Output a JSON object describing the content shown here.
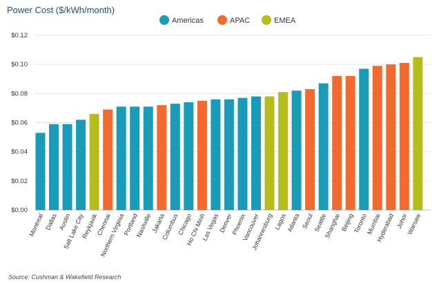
{
  "chart_data": {
    "type": "bar",
    "title": "Power Cost ($/kWh/month)",
    "source": "Source: Cushman & Wakefield Research",
    "ylim": [
      0,
      0.12
    ],
    "yticks": [
      "$0.00",
      "$0.02",
      "$0.04",
      "$0.06",
      "$0.08",
      "$0.10",
      "$0.12"
    ],
    "grid": true,
    "legend_position": "top-center",
    "colors": {
      "Americas": "#1a9bb8",
      "APAC": "#f26a2e",
      "EMEA": "#b5bd1a"
    },
    "series": [
      {
        "name": "Americas"
      },
      {
        "name": "APAC"
      },
      {
        "name": "EMEA"
      }
    ],
    "categories": [
      "Montreal",
      "Dallas",
      "Austin",
      "Salt Lake City",
      "Reykjavik",
      "Chennai",
      "Northern Virginia",
      "Portland",
      "Nashville",
      "Jakarta",
      "Columbus",
      "Chicago",
      "Ho Chi Minh",
      "Las Vegas",
      "Denver",
      "Phoenix",
      "Vancouver",
      "Johannesburg",
      "Lagos",
      "Atlanta",
      "Seoul",
      "Seattle",
      "Shanghai",
      "Beijing",
      "Toronto",
      "Mumbai",
      "Hyderabad",
      "Johor",
      "Warsaw"
    ],
    "regions": [
      "Americas",
      "Americas",
      "Americas",
      "Americas",
      "EMEA",
      "APAC",
      "Americas",
      "Americas",
      "Americas",
      "APAC",
      "Americas",
      "Americas",
      "APAC",
      "Americas",
      "Americas",
      "Americas",
      "Americas",
      "EMEA",
      "EMEA",
      "Americas",
      "APAC",
      "Americas",
      "APAC",
      "APAC",
      "Americas",
      "APAC",
      "APAC",
      "APAC",
      "EMEA"
    ],
    "values": [
      0.053,
      0.059,
      0.059,
      0.062,
      0.066,
      0.069,
      0.071,
      0.071,
      0.071,
      0.072,
      0.073,
      0.074,
      0.075,
      0.076,
      0.076,
      0.077,
      0.078,
      0.078,
      0.081,
      0.082,
      0.083,
      0.087,
      0.092,
      0.092,
      0.097,
      0.099,
      0.1,
      0.101,
      0.105
    ]
  }
}
